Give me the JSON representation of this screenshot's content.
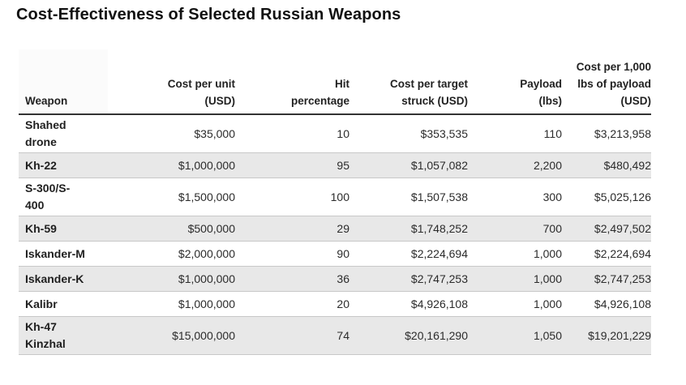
{
  "title": "Cost-Effectiveness of Selected Russian Weapons",
  "headers": [
    [
      "Weapon"
    ],
    [
      "Cost per unit",
      "(USD)"
    ],
    [
      "Hit",
      "percentage"
    ],
    [
      "Cost per target",
      "struck (USD)"
    ],
    [
      "Payload",
      "(lbs)"
    ],
    [
      "Cost per 1,000",
      "lbs of payload",
      "(USD)"
    ]
  ],
  "rows": [
    {
      "weapon": [
        "Shahed",
        "drone"
      ],
      "cost_per_unit": "$35,000",
      "hit_percentage": "10",
      "cost_per_target": "$353,535",
      "payload": "110",
      "cost_per_1000": "$3,213,958"
    },
    {
      "weapon": [
        "Kh-22"
      ],
      "cost_per_unit": "$1,000,000",
      "hit_percentage": "95",
      "cost_per_target": "$1,057,082",
      "payload": "2,200",
      "cost_per_1000": "$480,492"
    },
    {
      "weapon": [
        "S-300/S-",
        "400"
      ],
      "cost_per_unit": "$1,500,000",
      "hit_percentage": "100",
      "cost_per_target": "$1,507,538",
      "payload": "300",
      "cost_per_1000": "$5,025,126"
    },
    {
      "weapon": [
        "Kh-59"
      ],
      "cost_per_unit": "$500,000",
      "hit_percentage": "29",
      "cost_per_target": "$1,748,252",
      "payload": "700",
      "cost_per_1000": "$2,497,502"
    },
    {
      "weapon": [
        "Iskander-M"
      ],
      "cost_per_unit": "$2,000,000",
      "hit_percentage": "90",
      "cost_per_target": "$2,224,694",
      "payload": "1,000",
      "cost_per_1000": "$2,224,694"
    },
    {
      "weapon": [
        "Iskander-K"
      ],
      "cost_per_unit": "$1,000,000",
      "hit_percentage": "36",
      "cost_per_target": "$2,747,253",
      "payload": "1,000",
      "cost_per_1000": "$2,747,253"
    },
    {
      "weapon": [
        "Kalibr"
      ],
      "cost_per_unit": "$1,000,000",
      "hit_percentage": "20",
      "cost_per_target": "$4,926,108",
      "payload": "1,000",
      "cost_per_1000": "$4,926,108"
    },
    {
      "weapon": [
        "Kh-47",
        "Kinzhal"
      ],
      "cost_per_unit": "$15,000,000",
      "hit_percentage": "74",
      "cost_per_target": "$20,161,290",
      "payload": "1,050",
      "cost_per_1000": "$19,201,229"
    }
  ]
}
